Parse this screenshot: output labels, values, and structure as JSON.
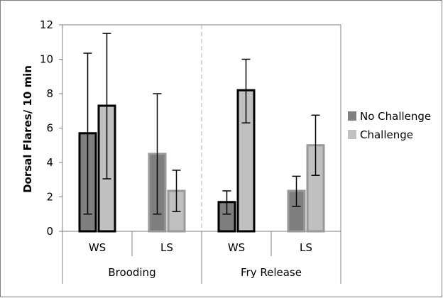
{
  "chart_data": {
    "type": "bar",
    "title": "",
    "ylabel": "Dorsal Flares/ 10 min",
    "xlabel": "",
    "ylim": [
      0,
      12
    ],
    "yticks": [
      0,
      2,
      4,
      6,
      8,
      10,
      12
    ],
    "grid": false,
    "legend_position": "right",
    "groups": [
      {
        "name": "Brooding",
        "categories": [
          "WS",
          "LS"
        ]
      },
      {
        "name": "Fry Release",
        "categories": [
          "WS",
          "LS"
        ]
      }
    ],
    "categories": [
      "WS",
      "LS",
      "WS",
      "LS"
    ],
    "series": [
      {
        "name": "No Challenge",
        "color": "#7f7f7f",
        "values": [
          5.7,
          4.5,
          1.7,
          2.35
        ],
        "error_low": [
          1.0,
          1.0,
          1.0,
          1.45
        ],
        "error_high": [
          10.35,
          8.0,
          2.35,
          3.2
        ]
      },
      {
        "name": "Challenge",
        "color": "#c0c0c0",
        "values": [
          7.3,
          2.35,
          8.2,
          5.0
        ],
        "error_low": [
          3.05,
          1.15,
          6.3,
          3.25
        ],
        "error_high": [
          11.5,
          3.55,
          10.0,
          6.75
        ]
      }
    ],
    "bar_outline": [
      "#000000",
      "#999999",
      "#000000",
      "#999999"
    ]
  }
}
